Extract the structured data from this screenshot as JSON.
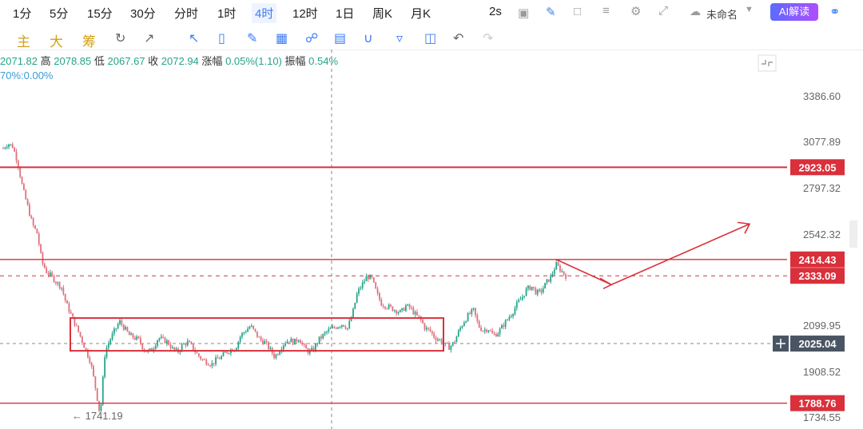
{
  "timeframes": [
    "1分",
    "5分",
    "15分",
    "30分",
    "分时",
    "1时",
    "4时",
    "12时",
    "1日",
    "周K",
    "月K"
  ],
  "active_timeframe": "4时",
  "refresh": "2s",
  "layout_name": "未命名",
  "ai_button": "AI解读",
  "indicator_labels": [
    "主",
    "大",
    "筹"
  ],
  "ohlc": {
    "open": "2071.82",
    "high_label": "高",
    "high": "2078.85",
    "low_label": "低",
    "low": "2067.67",
    "close_label": "收",
    "close": "2072.94",
    "change_label": "涨幅",
    "change": "0.05%(1.10)",
    "amp_label": "振幅",
    "amp": "0.54%"
  },
  "ma_text": "70%:0.00%",
  "colors": {
    "up": "#26a38a",
    "down": "#e0707c",
    "level": "#d9303b",
    "accent": "#3b7cf4",
    "badge_dark": "#4a5563"
  },
  "chart_data": {
    "type": "candlestick",
    "y_ticks": [
      3386.6,
      3077.89,
      2797.32,
      2542.32,
      2099.95,
      1908.52,
      1734.55
    ],
    "horizontal_levels": [
      2923.05,
      2414.43,
      1788.76
    ],
    "dashed_levels": [
      2333.09,
      2025.04
    ],
    "current_price": "2025.04",
    "low_annotation": "1741.19",
    "range_box": {
      "low": 1995,
      "high": 2135
    },
    "forecast_path": [
      2414.43,
      2290,
      2600
    ],
    "price_path": [
      3040,
      3070,
      3050,
      2950,
      2800,
      2700,
      2600,
      2550,
      2400,
      2350,
      2330,
      2300,
      2280,
      2200,
      2150,
      2100,
      2050,
      2000,
      1950,
      1850,
      1741.19,
      1990,
      2040,
      2080,
      2120,
      2090,
      2060,
      2050,
      2040,
      2000,
      1990,
      2010,
      2050,
      2040,
      2030,
      2000,
      1990,
      2020,
      2030,
      2010,
      1980,
      1960,
      1950,
      1940,
      1960,
      1970,
      1990,
      2000,
      2010,
      2060,
      2080,
      2100,
      2070,
      2040,
      2030,
      2000,
      1970,
      2000,
      2030,
      2040,
      2030,
      2050,
      2010,
      1990,
      2000,
      2040,
      2060,
      2080,
      2090,
      2100,
      2110,
      2090,
      2150,
      2250,
      2290,
      2330,
      2320,
      2250,
      2200,
      2190,
      2180,
      2170,
      2160,
      2190,
      2180,
      2150,
      2130,
      2090,
      2080,
      2050,
      2040,
      2020,
      2010,
      2030,
      2080,
      2120,
      2150,
      2170,
      2100,
      2080,
      2090,
      2060,
      2070,
      2100,
      2130,
      2160,
      2200,
      2230,
      2270,
      2280,
      2250,
      2260,
      2300,
      2330,
      2390,
      2360,
      2333
    ]
  }
}
